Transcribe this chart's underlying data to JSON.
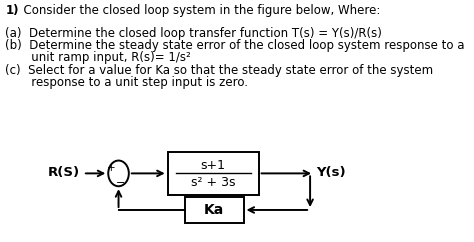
{
  "title_num": "1)",
  "title_rest": "  Consider the closed loop system in the figure below, Where:",
  "item_a": "(a)  Determine the closed loop transfer function T(s) = Y(s)/R(s)",
  "item_b_line1": "(b)  Determine the steady state error of the closed loop system response to a",
  "item_b_line2": "       unit ramp input, R(s)= 1/s²",
  "item_c_line1": "(c)  Select for a value for Ka so that the steady state error of the system",
  "item_c_line2": "       response to a unit step input is zero.",
  "label_rs": "R(S)",
  "label_ys": "Y(s)",
  "forward_num": "s+1",
  "forward_den": "s² + 3s",
  "feedback_label": "Ka",
  "plus_sign": "+",
  "minus_sign": "−",
  "bg_color": "#ffffff",
  "text_color": "#000000",
  "box_color": "#000000",
  "font_size_text": 8.5,
  "font_size_label": 9.5
}
